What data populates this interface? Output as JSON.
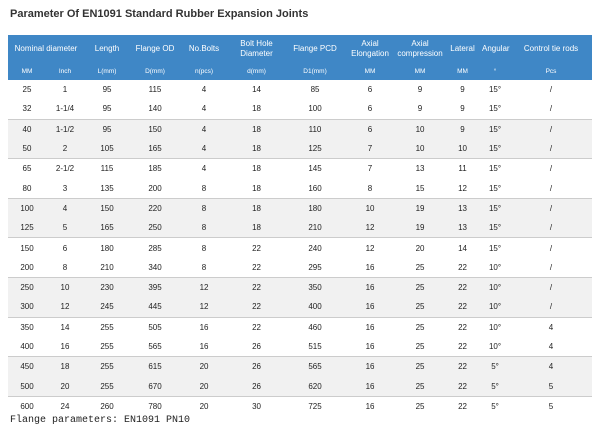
{
  "title": "Parameter Of EN1091 Standard Rubber Expansion Joints",
  "table": {
    "header_top": [
      "Nominal diameter",
      "Length",
      "Flange OD",
      "No.Bolts",
      "Bolt Hole Diameter",
      "Flange PCD",
      "Axial Elongation",
      "Axial compression",
      "Lateral",
      "Angular",
      "Control tie rods"
    ],
    "header_units": [
      "MM",
      "Inch",
      "L(mm)",
      "D(mm)",
      "n(pcs)",
      "d(mm)",
      "D1(mm)",
      "MM",
      "MM",
      "MM",
      "°",
      "Pcs"
    ],
    "rows": [
      [
        "25",
        "1",
        "95",
        "115",
        "4",
        "14",
        "85",
        "6",
        "9",
        "9",
        "15°",
        "/"
      ],
      [
        "32",
        "1-1/4",
        "95",
        "140",
        "4",
        "18",
        "100",
        "6",
        "9",
        "9",
        "15°",
        "/"
      ],
      [
        "40",
        "1-1/2",
        "95",
        "150",
        "4",
        "18",
        "110",
        "6",
        "10",
        "9",
        "15°",
        "/"
      ],
      [
        "50",
        "2",
        "105",
        "165",
        "4",
        "18",
        "125",
        "7",
        "10",
        "10",
        "15°",
        "/"
      ],
      [
        "65",
        "2-1/2",
        "115",
        "185",
        "4",
        "18",
        "145",
        "7",
        "13",
        "11",
        "15°",
        "/"
      ],
      [
        "80",
        "3",
        "135",
        "200",
        "8",
        "18",
        "160",
        "8",
        "15",
        "12",
        "15°",
        "/"
      ],
      [
        "100",
        "4",
        "150",
        "220",
        "8",
        "18",
        "180",
        "10",
        "19",
        "13",
        "15°",
        "/"
      ],
      [
        "125",
        "5",
        "165",
        "250",
        "8",
        "18",
        "210",
        "12",
        "19",
        "13",
        "15°",
        "/"
      ],
      [
        "150",
        "6",
        "180",
        "285",
        "8",
        "22",
        "240",
        "12",
        "20",
        "14",
        "15°",
        "/"
      ],
      [
        "200",
        "8",
        "210",
        "340",
        "8",
        "22",
        "295",
        "16",
        "25",
        "22",
        "10°",
        "/"
      ],
      [
        "250",
        "10",
        "230",
        "395",
        "12",
        "22",
        "350",
        "16",
        "25",
        "22",
        "10°",
        "/"
      ],
      [
        "300",
        "12",
        "245",
        "445",
        "12",
        "22",
        "400",
        "16",
        "25",
        "22",
        "10°",
        "/"
      ],
      [
        "350",
        "14",
        "255",
        "505",
        "16",
        "22",
        "460",
        "16",
        "25",
        "22",
        "10°",
        "4"
      ],
      [
        "400",
        "16",
        "255",
        "565",
        "16",
        "26",
        "515",
        "16",
        "25",
        "22",
        "10°",
        "4"
      ],
      [
        "450",
        "18",
        "255",
        "615",
        "20",
        "26",
        "565",
        "16",
        "25",
        "22",
        "5°",
        "4"
      ],
      [
        "500",
        "20",
        "255",
        "670",
        "20",
        "26",
        "620",
        "16",
        "25",
        "22",
        "5°",
        "5"
      ],
      [
        "600",
        "24",
        "260",
        "780",
        "20",
        "30",
        "725",
        "16",
        "25",
        "22",
        "5°",
        "5"
      ]
    ]
  },
  "footer": "Flange parameters:  EN1091 PN10"
}
